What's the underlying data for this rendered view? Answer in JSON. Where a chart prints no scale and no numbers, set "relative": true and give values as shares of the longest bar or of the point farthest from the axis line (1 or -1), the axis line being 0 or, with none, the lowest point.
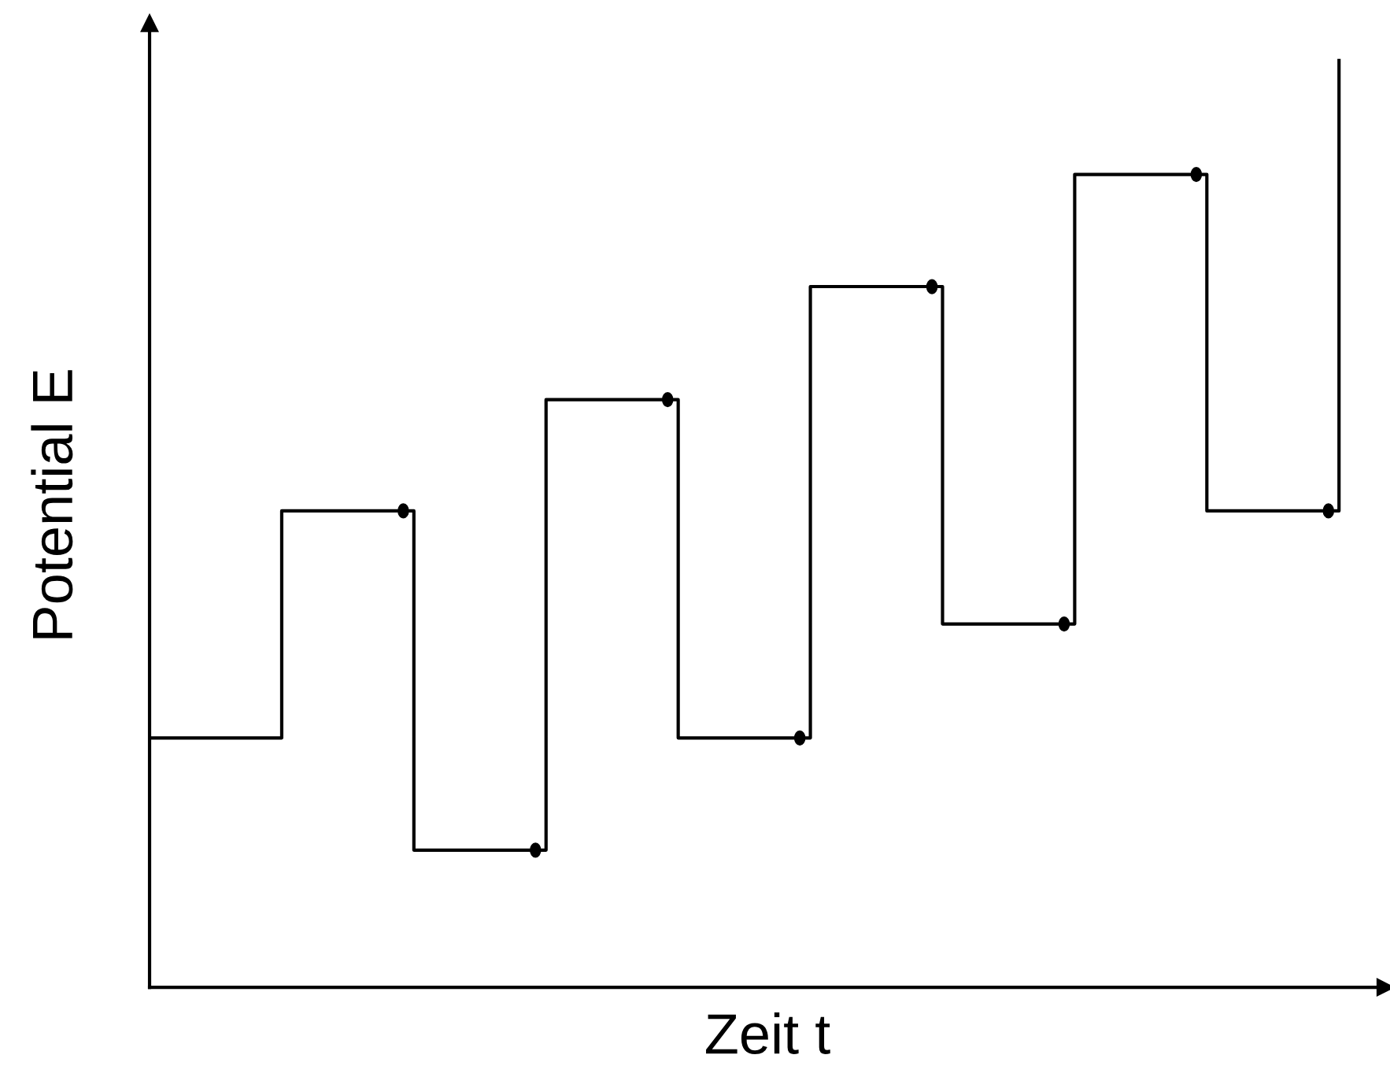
{
  "chart_data": {
    "type": "step",
    "xlabel": "Zeit t",
    "ylabel": "Potential E",
    "relative": true,
    "categories": [
      null,
      null,
      null,
      null,
      null,
      null,
      null,
      null,
      null,
      null
    ],
    "series": [
      {
        "color": "#000000",
        "values": [
          0.269,
          0.514,
          0.148,
          0.634,
          0.269,
          0.756,
          0.392,
          0.877,
          0.514,
          1.0
        ]
      }
    ]
  }
}
